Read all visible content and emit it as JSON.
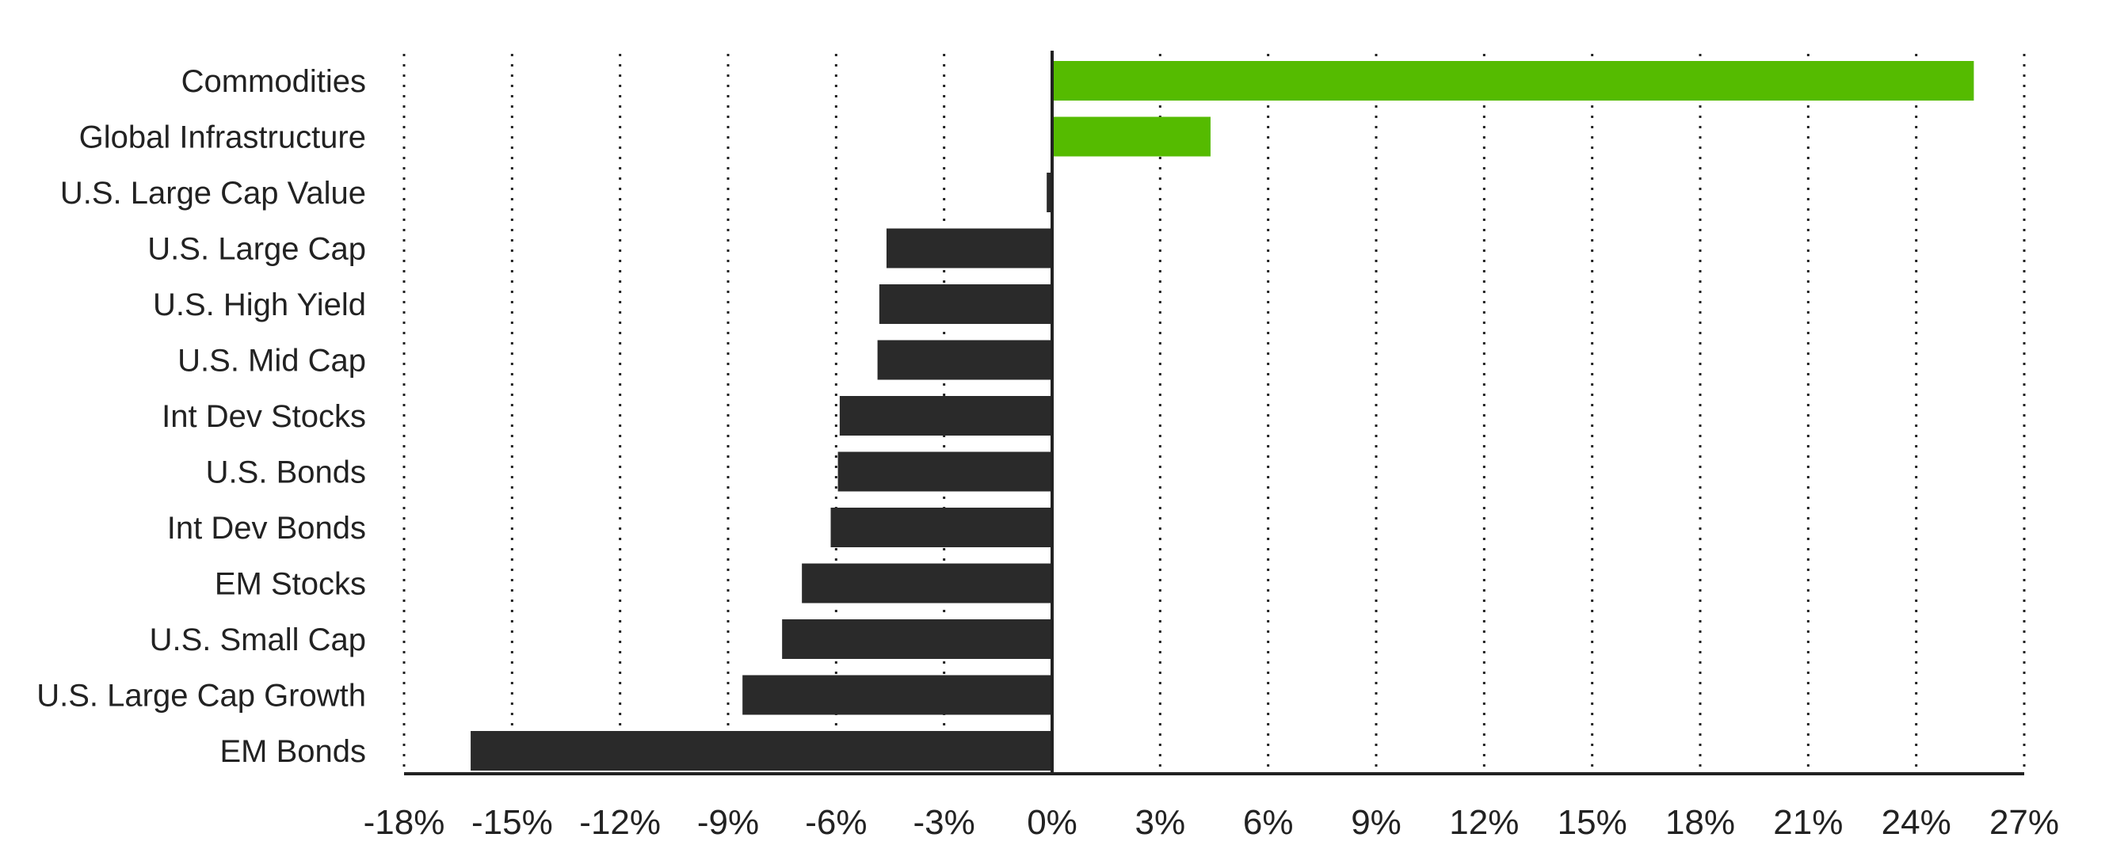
{
  "chart_data": {
    "type": "bar",
    "orientation": "horizontal",
    "title": "",
    "xlabel": "",
    "ylabel": "",
    "categories": [
      "Commodities",
      "Global Infrastructure",
      "U.S. Large Cap Value",
      "U.S. Large Cap",
      "U.S. High Yield",
      "U.S. Mid Cap",
      "Int Dev Stocks",
      "U.S. Bonds",
      "Int Dev Bonds",
      "EM Stocks",
      "U.S. Small Cap",
      "U.S. Large Cap Growth",
      "EM Bonds"
    ],
    "values": [
      25.6,
      4.4,
      -0.15,
      -4.6,
      -4.8,
      -4.85,
      -5.9,
      -5.95,
      -6.15,
      -6.95,
      -7.5,
      -8.6,
      -16.15
    ],
    "xlim": [
      -18,
      27
    ],
    "xticks": [
      -18,
      -15,
      -12,
      -9,
      -6,
      -3,
      0,
      3,
      6,
      9,
      12,
      15,
      18,
      21,
      24,
      27
    ],
    "xtick_labels": [
      "-18%",
      "-15%",
      "-12%",
      "-9%",
      "-6%",
      "-3%",
      "0%",
      "3%",
      "6%",
      "9%",
      "12%",
      "15%",
      "18%",
      "21%",
      "24%",
      "27%"
    ],
    "grid": "vertical dotted",
    "legend": "none",
    "colors": {
      "positive": "#55bb00",
      "negative": "#2a2a2a",
      "text": "#222222"
    }
  }
}
